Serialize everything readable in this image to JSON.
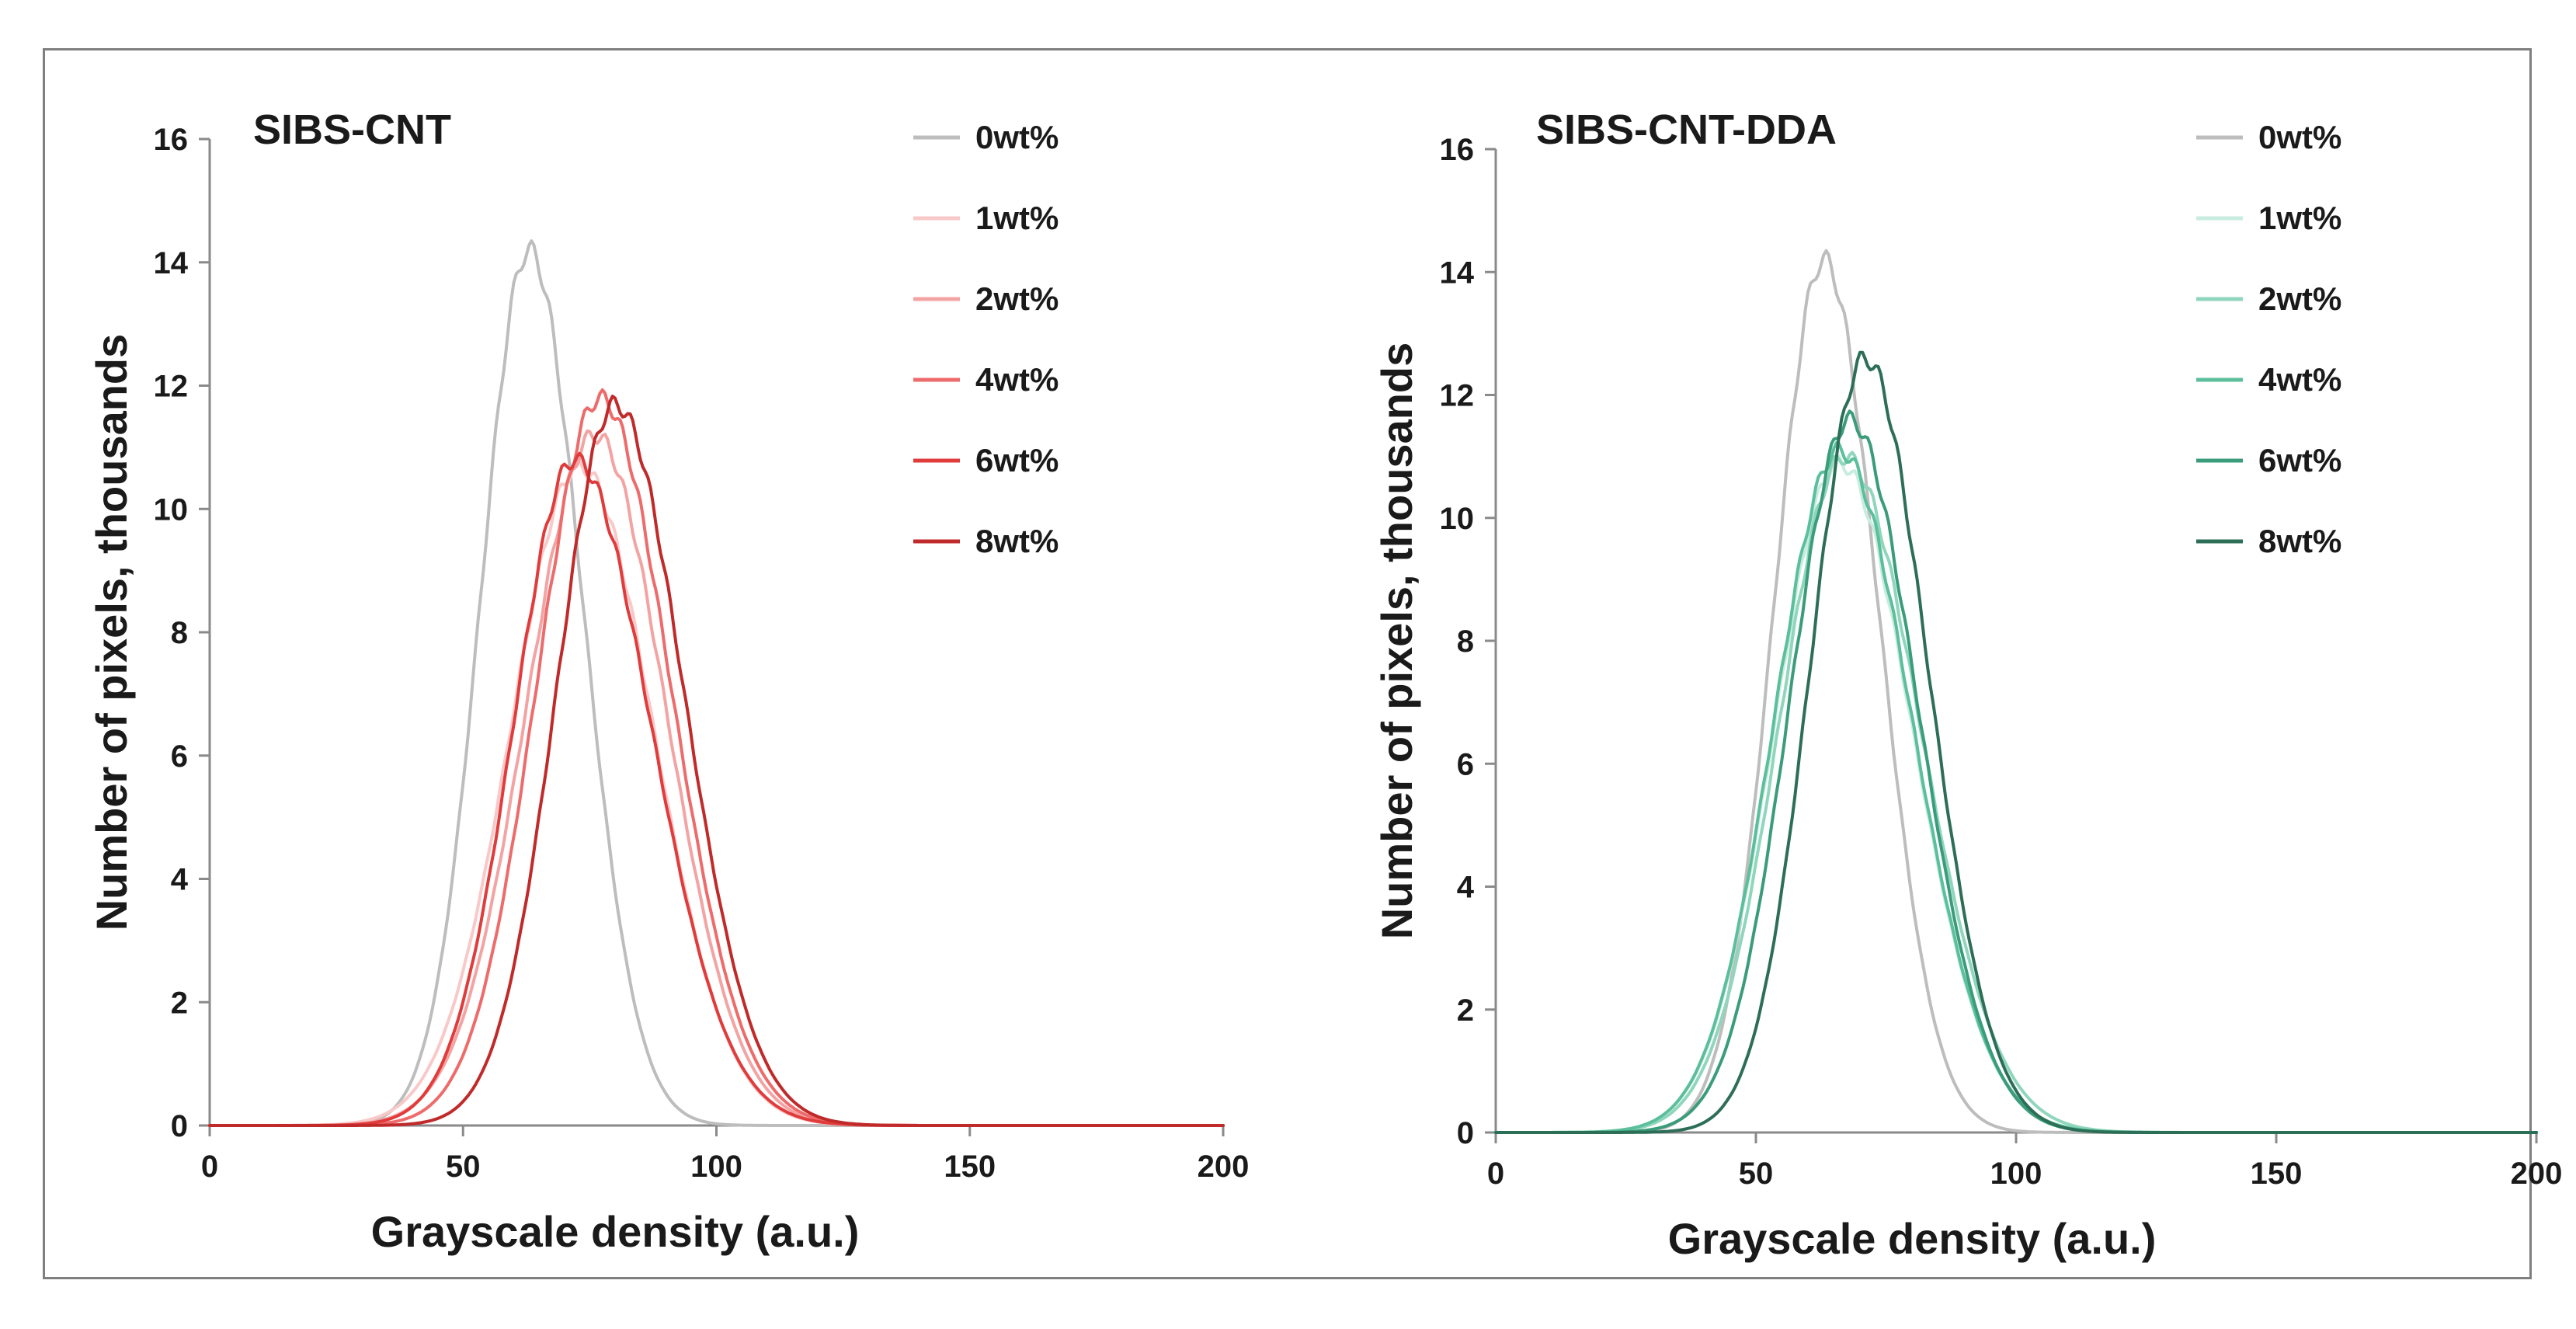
{
  "chart_data": [
    {
      "type": "line",
      "title": "SIBS-CNT",
      "xlabel": "Grayscale density (a.u.)",
      "ylabel": "Number of pixels, thousands",
      "xlim": [
        0,
        200
      ],
      "ylim": [
        0,
        16
      ],
      "xticks": [
        0,
        50,
        100,
        150,
        200
      ],
      "yticks": [
        0,
        2,
        4,
        6,
        8,
        10,
        12,
        14,
        16
      ],
      "grid": false,
      "legend_position": "top-right",
      "series": [
        {
          "name": "0wt%",
          "color": "#bdbdbd",
          "mean": 63,
          "peak": 14.2,
          "sigma_left": 9.5,
          "sigma_right": 10.5
        },
        {
          "name": "1wt%",
          "color": "#f9c8c8",
          "mean": 73,
          "peak": 10.7,
          "sigma_left": 13.5,
          "sigma_right": 14.5
        },
        {
          "name": "2wt%",
          "color": "#f4a3a3",
          "mean": 76,
          "peak": 11.2,
          "sigma_left": 13.5,
          "sigma_right": 14.0
        },
        {
          "name": "4wt%",
          "color": "#ee6b6b",
          "mean": 77,
          "peak": 11.8,
          "sigma_left": 12.5,
          "sigma_right": 14.0
        },
        {
          "name": "6wt%",
          "color": "#e03c3c",
          "mean": 72,
          "peak": 10.8,
          "sigma_left": 12.0,
          "sigma_right": 15.0
        },
        {
          "name": "8wt%",
          "color": "#c02a2a",
          "mean": 80,
          "peak": 11.7,
          "sigma_left": 11.5,
          "sigma_right": 13.5
        }
      ]
    },
    {
      "type": "line",
      "title": "SIBS-CNT-DDA",
      "xlabel": "Grayscale density (a.u.)",
      "ylabel": "Number of pixels, thousands",
      "xlim": [
        0,
        200
      ],
      "ylim": [
        0,
        16
      ],
      "xticks": [
        0,
        50,
        100,
        150,
        200
      ],
      "yticks": [
        0,
        2,
        4,
        6,
        8,
        10,
        12,
        14,
        16
      ],
      "grid": false,
      "legend_position": "top-right",
      "series": [
        {
          "name": "0wt%",
          "color": "#bdbdbd",
          "mean": 63,
          "peak": 14.2,
          "sigma_left": 9.5,
          "sigma_right": 10.5
        },
        {
          "name": "1wt%",
          "color": "#c8ecdf",
          "mean": 66,
          "peak": 10.9,
          "sigma_left": 12.5,
          "sigma_right": 14.0
        },
        {
          "name": "2wt%",
          "color": "#8fd6bc",
          "mean": 67,
          "peak": 11.0,
          "sigma_left": 12.5,
          "sigma_right": 14.5
        },
        {
          "name": "4wt%",
          "color": "#5bbf9c",
          "mean": 66,
          "peak": 11.1,
          "sigma_left": 12.5,
          "sigma_right": 14.0
        },
        {
          "name": "6wt%",
          "color": "#3a9c7b",
          "mean": 68,
          "peak": 11.6,
          "sigma_left": 11.5,
          "sigma_right": 13.0
        },
        {
          "name": "8wt%",
          "color": "#2d6e57",
          "mean": 71,
          "peak": 12.6,
          "sigma_left": 10.5,
          "sigma_right": 12.0
        }
      ]
    }
  ]
}
